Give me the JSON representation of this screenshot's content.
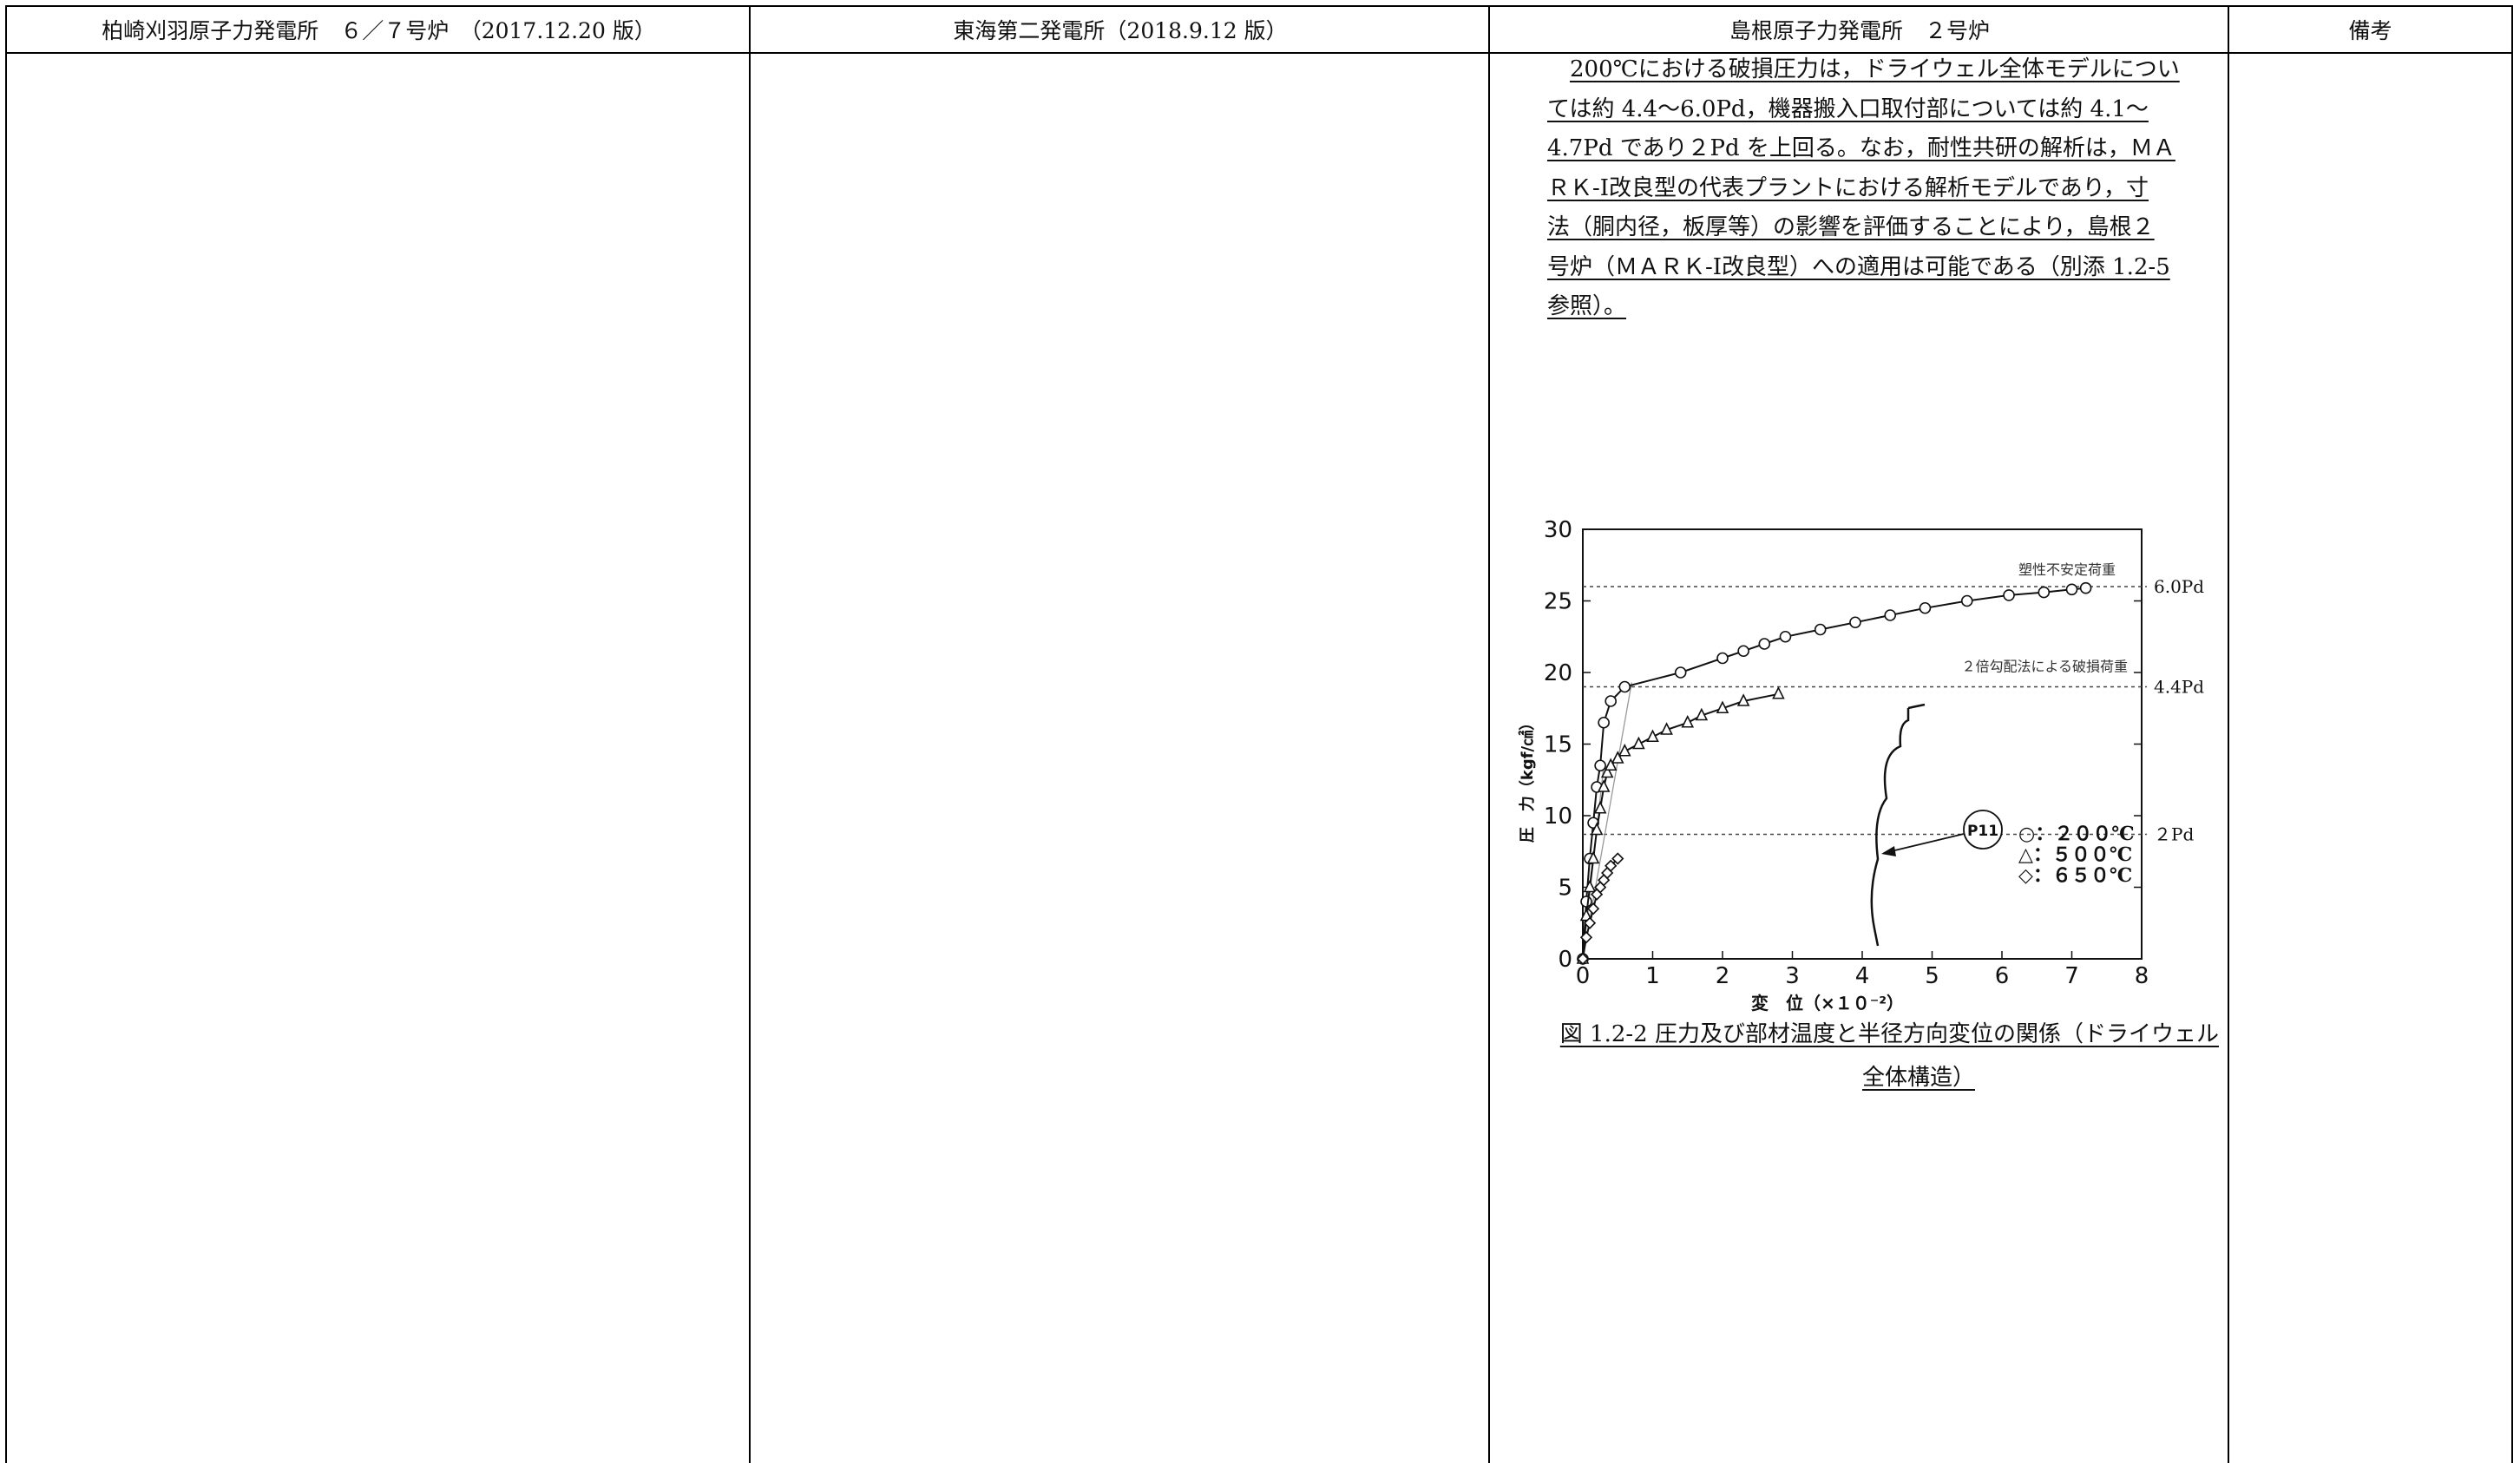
{
  "header": {
    "col1": "柏崎刈羽原子力発電所　６／７号炉　（2017.12.20 版）",
    "col2": "東海第二発電所（2018.9.12 版）",
    "col3": "島根原子力発電所　２号炉",
    "col4": "備考"
  },
  "body_text": {
    "lines": [
      "200℃における破損圧力は，ドライウェル全体モデルについ",
      "ては約 4.4～6.0Pd，機器搬入口取付部については約 4.1～",
      "4.7Pd であり２Pd を上回る。なお，耐性共研の解析は，ＭＡ",
      "ＲＫ-Ⅰ改良型の代表プラントにおける解析モデルであり，寸",
      "法（胴内径，板厚等）の影響を評価することにより，島根２",
      "号炉（ＭＡＲＫ-Ⅰ改良型）への適用は可能である（別添 1.2-5",
      "参照）。"
    ]
  },
  "figure": {
    "caption_line1": "図 1.2-2 圧力及び部材温度と半径方向変位の関係（ドライウェル",
    "caption_line2": "全体構造）"
  },
  "chart_data": {
    "type": "scatter",
    "xlabel": "変　位（×１０⁻²）",
    "ylabel": "圧　力（kgf/㎠）",
    "xlim": [
      0,
      8
    ],
    "ylim": [
      0,
      30
    ],
    "x_ticks": [
      "0",
      "1",
      "2",
      "3",
      "4",
      "5",
      "6",
      "7",
      "8"
    ],
    "y_ticks": [
      "0",
      "5",
      "10",
      "15",
      "20",
      "25",
      "30"
    ],
    "grid": false,
    "series": [
      {
        "name": "○：２００℃",
        "marker": "circle",
        "x": [
          0,
          0.05,
          0.1,
          0.15,
          0.2,
          0.25,
          0.3,
          0.4,
          0.6,
          1.4,
          2.0,
          2.3,
          2.6,
          2.9,
          3.4,
          3.9,
          4.4,
          4.9,
          5.5,
          6.1,
          6.6,
          7.0,
          7.2
        ],
        "y": [
          0,
          4,
          7,
          9.5,
          12,
          13.5,
          16.5,
          18,
          19,
          20,
          21,
          21.5,
          22,
          22.5,
          23,
          23.5,
          24,
          24.5,
          25,
          25.4,
          25.6,
          25.8,
          25.9
        ]
      },
      {
        "name": "△：５００℃",
        "marker": "triangle",
        "x": [
          0,
          0.05,
          0.1,
          0.15,
          0.2,
          0.25,
          0.3,
          0.35,
          0.4,
          0.5,
          0.6,
          0.8,
          1.0,
          1.2,
          1.5,
          1.7,
          2.0,
          2.3,
          2.8
        ],
        "y": [
          0,
          3,
          5,
          7,
          9,
          10.5,
          12,
          13,
          13.5,
          14,
          14.5,
          15,
          15.5,
          16,
          16.5,
          17,
          17.5,
          18,
          18.5
        ]
      },
      {
        "name": "◇：６５０℃",
        "marker": "diamond",
        "x": [
          0,
          0.05,
          0.1,
          0.15,
          0.2,
          0.25,
          0.3,
          0.35,
          0.4,
          0.5
        ],
        "y": [
          0,
          1.5,
          2.5,
          3.5,
          4.5,
          5,
          5.5,
          6,
          6.5,
          7
        ]
      }
    ],
    "reference_lines": [
      {
        "value": 26,
        "label_right": "6.0Pd",
        "note": "塑性不安定荷重"
      },
      {
        "value": 19,
        "label_right": "4.4Pd",
        "note": "２倍勾配法による破損荷重"
      },
      {
        "value": 8.7,
        "label_right": "２Pd"
      }
    ],
    "annotation": "P11",
    "colors": {
      "line": "#111111",
      "dashed": "#444444"
    }
  }
}
